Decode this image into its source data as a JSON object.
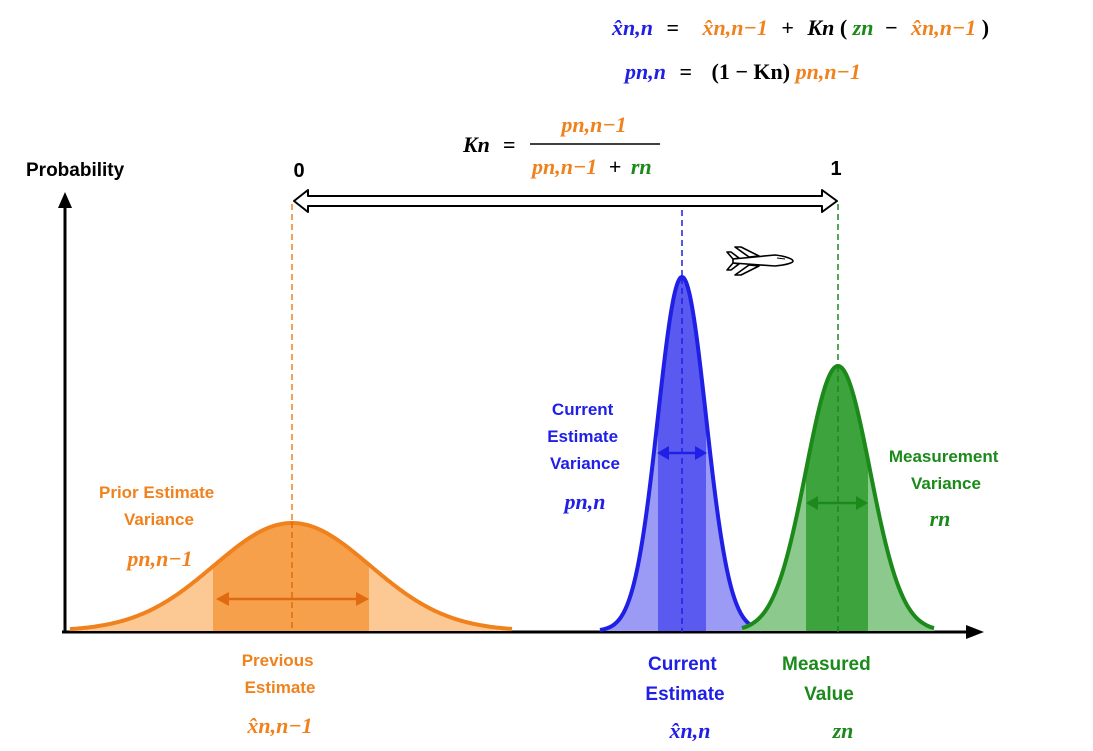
{
  "colors": {
    "orange": "#f0821e",
    "orange_dark": "#e06a12",
    "orange_mid": "#f7a04c",
    "orange_light": "#fcc994",
    "blue": "#1f1fe6",
    "blue_mid": "#5a5af0",
    "blue_light": "#9b9bf5",
    "green": "#1b8a1b",
    "green_mid": "#3da33d",
    "green_light": "#8cc98c",
    "black": "#000000"
  },
  "formulas": {
    "state_update": {
      "lhs": "x̂n,n",
      "eq": "=",
      "t1": "x̂n,n−1",
      "plus": "+",
      "gain": "Kn",
      "open": "(",
      "z": "zn",
      "minus": "−",
      "t2": "x̂n,n−1",
      "close": ")"
    },
    "covariance_update": {
      "lhs": "pn,n",
      "eq": "=",
      "factor": "(1 − Kn)",
      "prev": "pn,n−1"
    },
    "kalman_gain": {
      "lhs": "Kn",
      "eq": "=",
      "numerator": "pn,n−1",
      "denominator_p": "pn,n−1",
      "denominator_plus": "+",
      "denominator_r": "rn"
    }
  },
  "axis": {
    "y_label": "Probability"
  },
  "gain_scale": {
    "start_label": "0",
    "end_label": "1"
  },
  "distributions": {
    "prior": {
      "variance_title": "Prior Estimate\nVariance",
      "variance_symbol": "pn,n−1",
      "mean_title": "Previous\nEstimate",
      "mean_symbol": "x̂n,n−1"
    },
    "current": {
      "variance_title": "Current\nEstimate\nVariance",
      "variance_symbol": "pn,n",
      "mean_title": "Current\nEstimate",
      "mean_symbol": "x̂n,n"
    },
    "measurement": {
      "variance_title": "Measurement\nVariance",
      "variance_symbol": "rn",
      "mean_title": "Measured\nValue",
      "mean_symbol": "zn"
    }
  },
  "icons": {
    "aircraft": "airplane-icon"
  }
}
